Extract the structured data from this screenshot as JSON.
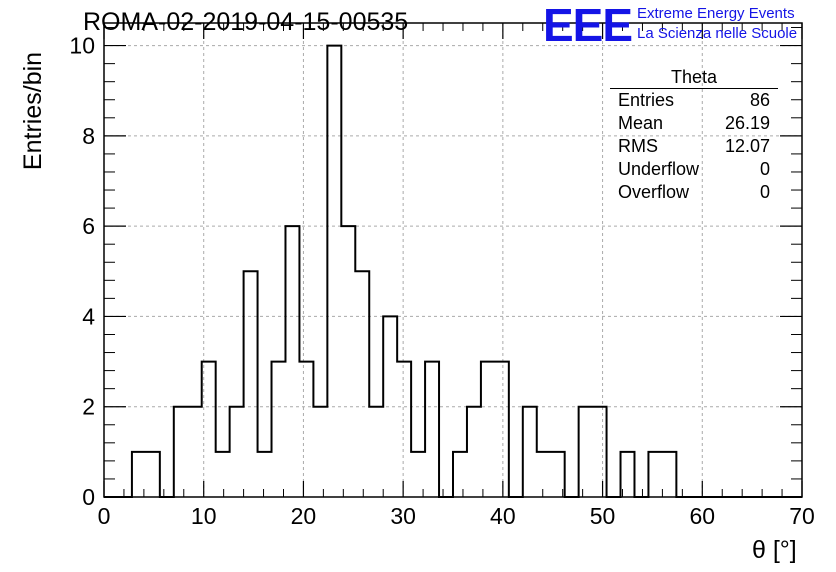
{
  "header": {
    "title": "ROMA-02-2019-04-15-00535",
    "logo_mark": "EEE",
    "logo_line1": "Extreme Energy Events",
    "logo_line2": "La Scienza nelle Scuole"
  },
  "stats": {
    "title": "Theta",
    "rows": [
      {
        "label": "Entries",
        "value": "86"
      },
      {
        "label": "Mean",
        "value": "26.19"
      },
      {
        "label": "RMS",
        "value": "12.07"
      },
      {
        "label": "Underflow",
        "value": "0"
      },
      {
        "label": "Overflow",
        "value": "0"
      }
    ]
  },
  "chart_data": {
    "type": "bar",
    "style": "step-histogram",
    "xlabel": "θ [°]",
    "ylabel": "Entries/bin",
    "xlim": [
      0,
      70
    ],
    "ylim": [
      0,
      10.5
    ],
    "grid": true,
    "xticks": [
      0,
      10,
      20,
      30,
      40,
      50,
      60,
      70
    ],
    "yticks": [
      0,
      2,
      4,
      6,
      8,
      10
    ],
    "bin_edges": [
      0,
      1.4,
      2.8,
      4.2,
      5.6,
      7.0,
      8.4,
      9.8,
      11.2,
      12.6,
      14.0,
      15.4,
      16.8,
      18.2,
      19.6,
      21.0,
      22.4,
      23.8,
      25.2,
      26.6,
      28.0,
      29.4,
      30.8,
      32.2,
      33.6,
      35.0,
      36.4,
      37.8,
      39.2,
      40.6,
      42.0,
      43.4,
      44.8,
      46.2,
      47.6,
      49.0,
      50.4,
      51.8,
      53.2,
      54.6,
      56.0,
      57.4,
      58.8,
      60.2,
      61.6,
      63.0,
      64.4,
      65.8,
      67.2,
      68.6,
      70.0
    ],
    "values": [
      0,
      0,
      1,
      1,
      0,
      2,
      2,
      3,
      1,
      2,
      5,
      1,
      3,
      6,
      3,
      2,
      10,
      6,
      5,
      2,
      4,
      3,
      1,
      3,
      0,
      1,
      2,
      3,
      3,
      0,
      2,
      1,
      1,
      0,
      2,
      2,
      0,
      1,
      0,
      1,
      1,
      0,
      0,
      0,
      0,
      0,
      0,
      0,
      0,
      0
    ]
  }
}
